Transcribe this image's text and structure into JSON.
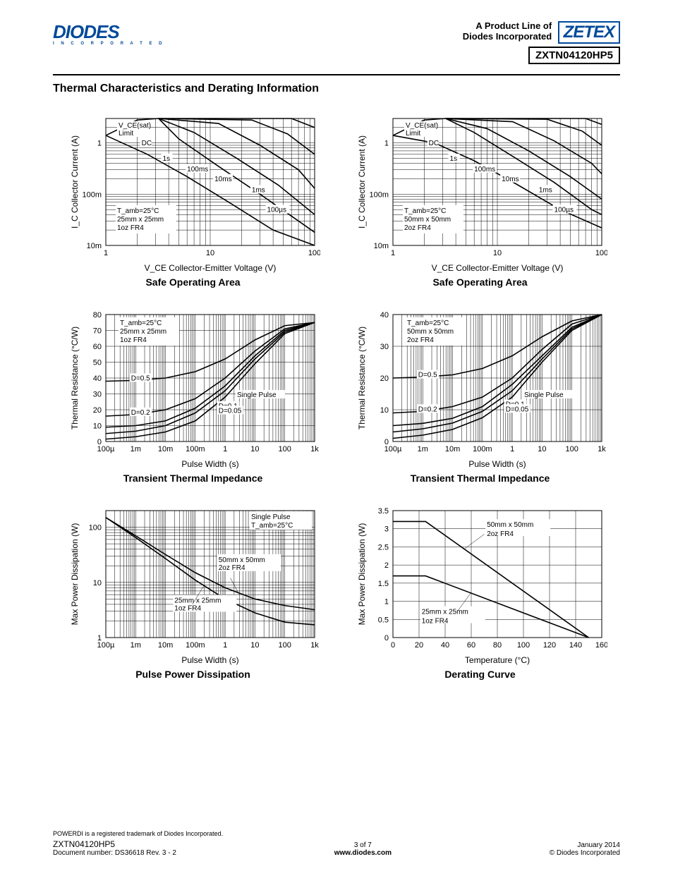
{
  "header": {
    "logo_text": "DIODES",
    "logo_tagline": "I N C O R P O R A T E D",
    "product_line_1": "A Product Line of",
    "product_line_2": "Diodes Incorporated",
    "zetex": "ZETEX",
    "part_number": "ZXTN04120HP5"
  },
  "section_title": "Thermal Characteristics and Derating Information",
  "charts": {
    "soa_left": {
      "type": "line-loglog",
      "title": "Safe Operating Area",
      "xlabel": "V_CE  Collector-Emitter Voltage (V)",
      "ylabel": "I_C   Collector Current (A)",
      "xlim": [
        1,
        100
      ],
      "ylim": [
        0.01,
        3
      ],
      "xticks": [
        1,
        10,
        100
      ],
      "xtick_labels": [
        "1",
        "10",
        "100"
      ],
      "yticks": [
        0.01,
        0.1,
        1
      ],
      "ytick_labels": [
        "10m",
        "100m",
        "1"
      ],
      "conditions": [
        "T_amb=25°C",
        "25mm x 25mm",
        "1oz FR4"
      ],
      "curve_labels": [
        "V_CE(sat)",
        "Limit",
        "DC",
        "1s",
        "100ms",
        "10ms",
        "1ms",
        "100µs"
      ],
      "curves": {
        "vcesat_limit": [
          [
            1,
            1.4
          ],
          [
            2,
            2.8
          ],
          [
            3.2,
            3
          ]
        ],
        "dc": [
          [
            1,
            1.4
          ],
          [
            2.5,
            0.6
          ],
          [
            6,
            0.22
          ],
          [
            15,
            0.07
          ],
          [
            40,
            0.02
          ],
          [
            100,
            0.01
          ]
        ],
        "1s": [
          [
            3.2,
            3
          ],
          [
            5,
            1.2
          ],
          [
            12,
            0.35
          ],
          [
            30,
            0.1
          ],
          [
            70,
            0.03
          ],
          [
            100,
            0.018
          ]
        ],
        "100ms": [
          [
            3.2,
            3
          ],
          [
            7,
            1.6
          ],
          [
            18,
            0.5
          ],
          [
            45,
            0.15
          ],
          [
            100,
            0.04
          ]
        ],
        "10ms": [
          [
            3.2,
            3
          ],
          [
            12,
            2.4
          ],
          [
            30,
            0.9
          ],
          [
            70,
            0.3
          ],
          [
            100,
            0.13
          ]
        ],
        "1ms": [
          [
            3.2,
            3
          ],
          [
            25,
            2.8
          ],
          [
            55,
            1.5
          ],
          [
            100,
            0.6
          ]
        ],
        "100us": [
          [
            3.2,
            3
          ],
          [
            60,
            3
          ],
          [
            100,
            2.0
          ]
        ]
      },
      "colors": {
        "line": "#000000",
        "grid": "#000000",
        "bg": "#ffffff"
      }
    },
    "soa_right": {
      "type": "line-loglog",
      "title": "Safe Operating Area",
      "xlabel": "V_CE  Collector-Emitter Voltage (V)",
      "ylabel": "I_C   Collector Current (A)",
      "xlim": [
        1,
        100
      ],
      "ylim": [
        0.01,
        3
      ],
      "xticks": [
        1,
        10,
        100
      ],
      "xtick_labels": [
        "1",
        "10",
        "100"
      ],
      "yticks": [
        0.01,
        0.1,
        1
      ],
      "ytick_labels": [
        "10m",
        "100m",
        "1"
      ],
      "conditions": [
        "T_amb=25°C",
        "50mm x 50mm",
        "2oz FR4"
      ],
      "curve_labels": [
        "V_CE(sat)",
        "Limit",
        "DC",
        "1s",
        "100ms",
        "10ms",
        "1ms",
        "100µs"
      ],
      "curves": {
        "vcesat_limit": [
          [
            1,
            1.4
          ],
          [
            2,
            2.8
          ],
          [
            3.2,
            3
          ]
        ],
        "dc": [
          [
            1,
            1.4
          ],
          [
            2.5,
            1.0
          ],
          [
            6,
            0.45
          ],
          [
            15,
            0.16
          ],
          [
            40,
            0.05
          ],
          [
            100,
            0.022
          ]
        ],
        "1s": [
          [
            3.2,
            3
          ],
          [
            6,
            1.6
          ],
          [
            14,
            0.55
          ],
          [
            35,
            0.17
          ],
          [
            80,
            0.05
          ],
          [
            100,
            0.04
          ]
        ],
        "100ms": [
          [
            3.2,
            3
          ],
          [
            8,
            1.9
          ],
          [
            20,
            0.7
          ],
          [
            50,
            0.22
          ],
          [
            100,
            0.08
          ]
        ],
        "10ms": [
          [
            3.2,
            3
          ],
          [
            14,
            2.6
          ],
          [
            35,
            1.1
          ],
          [
            80,
            0.4
          ],
          [
            100,
            0.25
          ]
        ],
        "1ms": [
          [
            3.2,
            3
          ],
          [
            30,
            2.9
          ],
          [
            65,
            1.7
          ],
          [
            100,
            0.9
          ]
        ],
        "100us": [
          [
            3.2,
            3
          ],
          [
            70,
            3
          ],
          [
            100,
            2.3
          ]
        ]
      },
      "colors": {
        "line": "#000000",
        "grid": "#000000",
        "bg": "#ffffff"
      }
    },
    "tti_left": {
      "type": "line-semilogx",
      "title": "Transient Thermal Impedance",
      "xlabel": "Pulse Width (s)",
      "ylabel": "Thermal Resistance (°C/W)",
      "xlim": [
        0.0001,
        1000
      ],
      "ylim": [
        0,
        80
      ],
      "xticks": [
        0.0001,
        0.001,
        0.01,
        0.1,
        1,
        10,
        100,
        1000
      ],
      "xtick_labels": [
        "100µ",
        "1m",
        "10m",
        "100m",
        "1",
        "10",
        "100",
        "1k"
      ],
      "yticks": [
        0,
        10,
        20,
        30,
        40,
        50,
        60,
        70,
        80
      ],
      "conditions": [
        "T_amb=25°C",
        "25mm x 25mm",
        "1oz FR4"
      ],
      "curve_labels": [
        "D=0.5",
        "D=0.2",
        "D=0.1",
        "D=0.05",
        "Single Pulse"
      ],
      "curves": {
        "d05": [
          [
            0.0001,
            38
          ],
          [
            0.001,
            38.5
          ],
          [
            0.01,
            40
          ],
          [
            0.1,
            44
          ],
          [
            1,
            52
          ],
          [
            10,
            64
          ],
          [
            100,
            73
          ],
          [
            1000,
            75
          ]
        ],
        "d02": [
          [
            0.0001,
            16
          ],
          [
            0.001,
            17
          ],
          [
            0.01,
            20
          ],
          [
            0.1,
            27
          ],
          [
            1,
            40
          ],
          [
            10,
            57
          ],
          [
            100,
            71
          ],
          [
            1000,
            75
          ]
        ],
        "d01": [
          [
            0.0001,
            9
          ],
          [
            0.001,
            10
          ],
          [
            0.01,
            13
          ],
          [
            0.1,
            21
          ],
          [
            1,
            35
          ],
          [
            10,
            54
          ],
          [
            100,
            70
          ],
          [
            1000,
            75
          ]
        ],
        "d005": [
          [
            0.0001,
            5
          ],
          [
            0.001,
            6.5
          ],
          [
            0.01,
            10
          ],
          [
            0.1,
            18
          ],
          [
            1,
            32
          ],
          [
            10,
            52
          ],
          [
            100,
            69
          ],
          [
            1000,
            75
          ]
        ],
        "single": [
          [
            0.0001,
            1.5
          ],
          [
            0.001,
            3
          ],
          [
            0.01,
            6
          ],
          [
            0.1,
            13
          ],
          [
            1,
            28
          ],
          [
            10,
            49
          ],
          [
            100,
            68
          ],
          [
            1000,
            75
          ]
        ]
      },
      "colors": {
        "line": "#000000",
        "grid": "#000000",
        "bg": "#ffffff"
      }
    },
    "tti_right": {
      "type": "line-semilogx",
      "title": "Transient Thermal Impedance",
      "xlabel": "Pulse Width (s)",
      "ylabel": "Thermal Resistance (°C/W)",
      "xlim": [
        0.0001,
        1000
      ],
      "ylim": [
        0,
        40
      ],
      "xticks": [
        0.0001,
        0.001,
        0.01,
        0.1,
        1,
        10,
        100,
        1000
      ],
      "xtick_labels": [
        "100µ",
        "1m",
        "10m",
        "100m",
        "1",
        "10",
        "100",
        "1k"
      ],
      "yticks": [
        0,
        10,
        20,
        30,
        40
      ],
      "conditions": [
        "T_amb=25°C",
        "50mm x 50mm",
        "2oz FR4"
      ],
      "curve_labels": [
        "D=0.5",
        "D=0.2",
        "D=0.1",
        "D=0.05",
        "Single Pulse"
      ],
      "curves": {
        "d05": [
          [
            0.0001,
            20
          ],
          [
            0.001,
            20.3
          ],
          [
            0.01,
            21
          ],
          [
            0.1,
            23
          ],
          [
            1,
            27
          ],
          [
            10,
            33
          ],
          [
            100,
            38
          ],
          [
            1000,
            40
          ]
        ],
        "d02": [
          [
            0.0001,
            9
          ],
          [
            0.001,
            9.5
          ],
          [
            0.01,
            11
          ],
          [
            0.1,
            14
          ],
          [
            1,
            20
          ],
          [
            10,
            29
          ],
          [
            100,
            37
          ],
          [
            1000,
            40
          ]
        ],
        "d01": [
          [
            0.0001,
            5
          ],
          [
            0.001,
            5.7
          ],
          [
            0.01,
            7.3
          ],
          [
            0.1,
            11
          ],
          [
            1,
            18
          ],
          [
            10,
            27
          ],
          [
            100,
            36
          ],
          [
            1000,
            40
          ]
        ],
        "d005": [
          [
            0.0001,
            3
          ],
          [
            0.001,
            4
          ],
          [
            0.01,
            5.8
          ],
          [
            0.1,
            9.5
          ],
          [
            1,
            16
          ],
          [
            10,
            26
          ],
          [
            100,
            35.5
          ],
          [
            1000,
            40
          ]
        ],
        "single": [
          [
            0.0001,
            1
          ],
          [
            0.001,
            2
          ],
          [
            0.01,
            3.8
          ],
          [
            0.1,
            7.5
          ],
          [
            1,
            14
          ],
          [
            10,
            25
          ],
          [
            100,
            35
          ],
          [
            1000,
            40
          ]
        ]
      },
      "colors": {
        "line": "#000000",
        "grid": "#000000",
        "bg": "#ffffff"
      }
    },
    "ppd": {
      "type": "line-loglog",
      "title": "Pulse Power Dissipation",
      "xlabel": "Pulse Width (s)",
      "ylabel": "Max Power Dissipation (W)",
      "xlim": [
        0.0001,
        1000
      ],
      "ylim": [
        1,
        200
      ],
      "xticks": [
        0.0001,
        0.001,
        0.01,
        0.1,
        1,
        10,
        100,
        1000
      ],
      "xtick_labels": [
        "100µ",
        "1m",
        "10m",
        "100m",
        "1",
        "10",
        "100",
        "1k"
      ],
      "yticks": [
        1,
        10,
        100
      ],
      "ytick_labels": [
        "1",
        "10",
        "100"
      ],
      "conditions": [
        "Single Pulse",
        "T_amb=25°C"
      ],
      "curve_labels": [
        "50mm x 50mm 2oz FR4",
        "25mm x 25mm 1oz FR4"
      ],
      "curves": {
        "big": [
          [
            0.0001,
            150
          ],
          [
            0.001,
            70
          ],
          [
            0.01,
            32
          ],
          [
            0.1,
            15
          ],
          [
            1,
            8
          ],
          [
            10,
            5
          ],
          [
            100,
            3.8
          ],
          [
            1000,
            3.2
          ]
        ],
        "small": [
          [
            0.0001,
            150
          ],
          [
            0.001,
            65
          ],
          [
            0.01,
            27
          ],
          [
            0.1,
            11
          ],
          [
            1,
            5
          ],
          [
            10,
            2.8
          ],
          [
            100,
            1.9
          ],
          [
            1000,
            1.7
          ]
        ]
      },
      "colors": {
        "line": "#000000",
        "grid": "#000000",
        "bg": "#ffffff"
      }
    },
    "derating": {
      "type": "line-linear",
      "title": "Derating Curve",
      "xlabel": "Temperature (°C)",
      "ylabel": "Max Power Dissipation (W)",
      "xlim": [
        0,
        160
      ],
      "ylim": [
        0,
        3.5
      ],
      "xticks": [
        0,
        20,
        40,
        60,
        80,
        100,
        120,
        140,
        160
      ],
      "yticks": [
        0,
        0.5,
        1.0,
        1.5,
        2.0,
        2.5,
        3.0,
        3.5
      ],
      "curve_labels": [
        "50mm x 50mm 2oz FR4",
        "25mm x 25mm 1oz FR4"
      ],
      "curves": {
        "big": [
          [
            0,
            3.2
          ],
          [
            25,
            3.2
          ],
          [
            150,
            0
          ]
        ],
        "small": [
          [
            0,
            1.7
          ],
          [
            25,
            1.7
          ],
          [
            150,
            0
          ]
        ]
      },
      "colors": {
        "line": "#000000",
        "grid": "#000000",
        "bg": "#ffffff"
      }
    }
  },
  "footer": {
    "trademark": "POWERDI is a registered trademark of Diodes Incorporated.",
    "part": "ZXTN04120HP5",
    "docnum": "Document number: DS36618 Rev. 3 - 2",
    "page": "3 of 7",
    "url": "www.diodes.com",
    "date": "January 2014",
    "copyright": "© Diodes Incorporated"
  }
}
